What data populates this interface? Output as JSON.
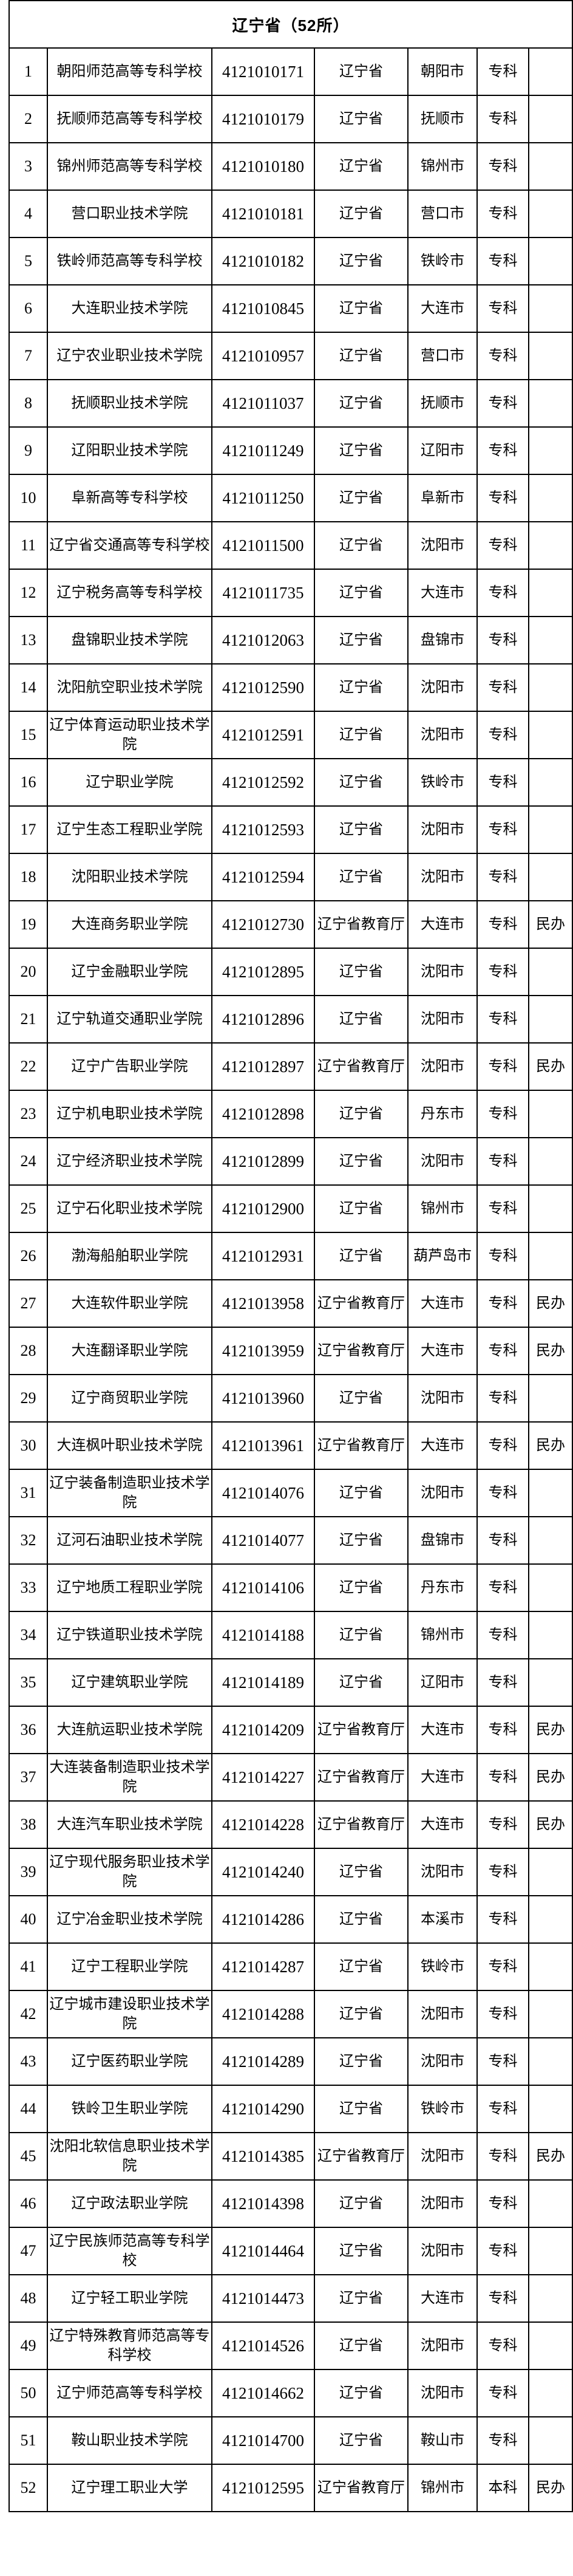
{
  "table": {
    "title": "辽宁省（52所）",
    "rows": [
      [
        "1",
        "朝阳师范高等专科学校",
        "4121010171",
        "辽宁省",
        "朝阳市",
        "专科",
        ""
      ],
      [
        "2",
        "抚顺师范高等专科学校",
        "4121010179",
        "辽宁省",
        "抚顺市",
        "专科",
        ""
      ],
      [
        "3",
        "锦州师范高等专科学校",
        "4121010180",
        "辽宁省",
        "锦州市",
        "专科",
        ""
      ],
      [
        "4",
        "营口职业技术学院",
        "4121010181",
        "辽宁省",
        "营口市",
        "专科",
        ""
      ],
      [
        "5",
        "铁岭师范高等专科学校",
        "4121010182",
        "辽宁省",
        "铁岭市",
        "专科",
        ""
      ],
      [
        "6",
        "大连职业技术学院",
        "4121010845",
        "辽宁省",
        "大连市",
        "专科",
        ""
      ],
      [
        "7",
        "辽宁农业职业技术学院",
        "4121010957",
        "辽宁省",
        "营口市",
        "专科",
        ""
      ],
      [
        "8",
        "抚顺职业技术学院",
        "4121011037",
        "辽宁省",
        "抚顺市",
        "专科",
        ""
      ],
      [
        "9",
        "辽阳职业技术学院",
        "4121011249",
        "辽宁省",
        "辽阳市",
        "专科",
        ""
      ],
      [
        "10",
        "阜新高等专科学校",
        "4121011250",
        "辽宁省",
        "阜新市",
        "专科",
        ""
      ],
      [
        "11",
        "辽宁省交通高等专科学校",
        "4121011500",
        "辽宁省",
        "沈阳市",
        "专科",
        ""
      ],
      [
        "12",
        "辽宁税务高等专科学校",
        "4121011735",
        "辽宁省",
        "大连市",
        "专科",
        ""
      ],
      [
        "13",
        "盘锦职业技术学院",
        "4121012063",
        "辽宁省",
        "盘锦市",
        "专科",
        ""
      ],
      [
        "14",
        "沈阳航空职业技术学院",
        "4121012590",
        "辽宁省",
        "沈阳市",
        "专科",
        ""
      ],
      [
        "15",
        "辽宁体育运动职业技术学院",
        "4121012591",
        "辽宁省",
        "沈阳市",
        "专科",
        ""
      ],
      [
        "16",
        "辽宁职业学院",
        "4121012592",
        "辽宁省",
        "铁岭市",
        "专科",
        ""
      ],
      [
        "17",
        "辽宁生态工程职业学院",
        "4121012593",
        "辽宁省",
        "沈阳市",
        "专科",
        ""
      ],
      [
        "18",
        "沈阳职业技术学院",
        "4121012594",
        "辽宁省",
        "沈阳市",
        "专科",
        ""
      ],
      [
        "19",
        "大连商务职业学院",
        "4121012730",
        "辽宁省教育厅",
        "大连市",
        "专科",
        "民办"
      ],
      [
        "20",
        "辽宁金融职业学院",
        "4121012895",
        "辽宁省",
        "沈阳市",
        "专科",
        ""
      ],
      [
        "21",
        "辽宁轨道交通职业学院",
        "4121012896",
        "辽宁省",
        "沈阳市",
        "专科",
        ""
      ],
      [
        "22",
        "辽宁广告职业学院",
        "4121012897",
        "辽宁省教育厅",
        "沈阳市",
        "专科",
        "民办"
      ],
      [
        "23",
        "辽宁机电职业技术学院",
        "4121012898",
        "辽宁省",
        "丹东市",
        "专科",
        ""
      ],
      [
        "24",
        "辽宁经济职业技术学院",
        "4121012899",
        "辽宁省",
        "沈阳市",
        "专科",
        ""
      ],
      [
        "25",
        "辽宁石化职业技术学院",
        "4121012900",
        "辽宁省",
        "锦州市",
        "专科",
        ""
      ],
      [
        "26",
        "渤海船舶职业学院",
        "4121012931",
        "辽宁省",
        "葫芦岛市",
        "专科",
        ""
      ],
      [
        "27",
        "大连软件职业学院",
        "4121013958",
        "辽宁省教育厅",
        "大连市",
        "专科",
        "民办"
      ],
      [
        "28",
        "大连翻译职业学院",
        "4121013959",
        "辽宁省教育厅",
        "大连市",
        "专科",
        "民办"
      ],
      [
        "29",
        "辽宁商贸职业学院",
        "4121013960",
        "辽宁省",
        "沈阳市",
        "专科",
        ""
      ],
      [
        "30",
        "大连枫叶职业技术学院",
        "4121013961",
        "辽宁省教育厅",
        "大连市",
        "专科",
        "民办"
      ],
      [
        "31",
        "辽宁装备制造职业技术学院",
        "4121014076",
        "辽宁省",
        "沈阳市",
        "专科",
        ""
      ],
      [
        "32",
        "辽河石油职业技术学院",
        "4121014077",
        "辽宁省",
        "盘锦市",
        "专科",
        ""
      ],
      [
        "33",
        "辽宁地质工程职业学院",
        "4121014106",
        "辽宁省",
        "丹东市",
        "专科",
        ""
      ],
      [
        "34",
        "辽宁铁道职业技术学院",
        "4121014188",
        "辽宁省",
        "锦州市",
        "专科",
        ""
      ],
      [
        "35",
        "辽宁建筑职业学院",
        "4121014189",
        "辽宁省",
        "辽阳市",
        "专科",
        ""
      ],
      [
        "36",
        "大连航运职业技术学院",
        "4121014209",
        "辽宁省教育厅",
        "大连市",
        "专科",
        "民办"
      ],
      [
        "37",
        "大连装备制造职业技术学院",
        "4121014227",
        "辽宁省教育厅",
        "大连市",
        "专科",
        "民办"
      ],
      [
        "38",
        "大连汽车职业技术学院",
        "4121014228",
        "辽宁省教育厅",
        "大连市",
        "专科",
        "民办"
      ],
      [
        "39",
        "辽宁现代服务职业技术学院",
        "4121014240",
        "辽宁省",
        "沈阳市",
        "专科",
        ""
      ],
      [
        "40",
        "辽宁冶金职业技术学院",
        "4121014286",
        "辽宁省",
        "本溪市",
        "专科",
        ""
      ],
      [
        "41",
        "辽宁工程职业学院",
        "4121014287",
        "辽宁省",
        "铁岭市",
        "专科",
        ""
      ],
      [
        "42",
        "辽宁城市建设职业技术学院",
        "4121014288",
        "辽宁省",
        "沈阳市",
        "专科",
        ""
      ],
      [
        "43",
        "辽宁医药职业学院",
        "4121014289",
        "辽宁省",
        "沈阳市",
        "专科",
        ""
      ],
      [
        "44",
        "铁岭卫生职业学院",
        "4121014290",
        "辽宁省",
        "铁岭市",
        "专科",
        ""
      ],
      [
        "45",
        "沈阳北软信息职业技术学院",
        "4121014385",
        "辽宁省教育厅",
        "沈阳市",
        "专科",
        "民办"
      ],
      [
        "46",
        "辽宁政法职业学院",
        "4121014398",
        "辽宁省",
        "沈阳市",
        "专科",
        ""
      ],
      [
        "47",
        "辽宁民族师范高等专科学校",
        "4121014464",
        "辽宁省",
        "沈阳市",
        "专科",
        ""
      ],
      [
        "48",
        "辽宁轻工职业学院",
        "4121014473",
        "辽宁省",
        "大连市",
        "专科",
        ""
      ],
      [
        "49",
        "辽宁特殊教育师范高等专科学校",
        "4121014526",
        "辽宁省",
        "沈阳市",
        "专科",
        ""
      ],
      [
        "50",
        "辽宁师范高等专科学校",
        "4121014662",
        "辽宁省",
        "沈阳市",
        "专科",
        ""
      ],
      [
        "51",
        "鞍山职业技术学院",
        "4121014700",
        "辽宁省",
        "鞍山市",
        "专科",
        ""
      ],
      [
        "52",
        "辽宁理工职业大学",
        "4121012595",
        "辽宁省教育厅",
        "锦州市",
        "本科",
        "民办"
      ]
    ]
  }
}
